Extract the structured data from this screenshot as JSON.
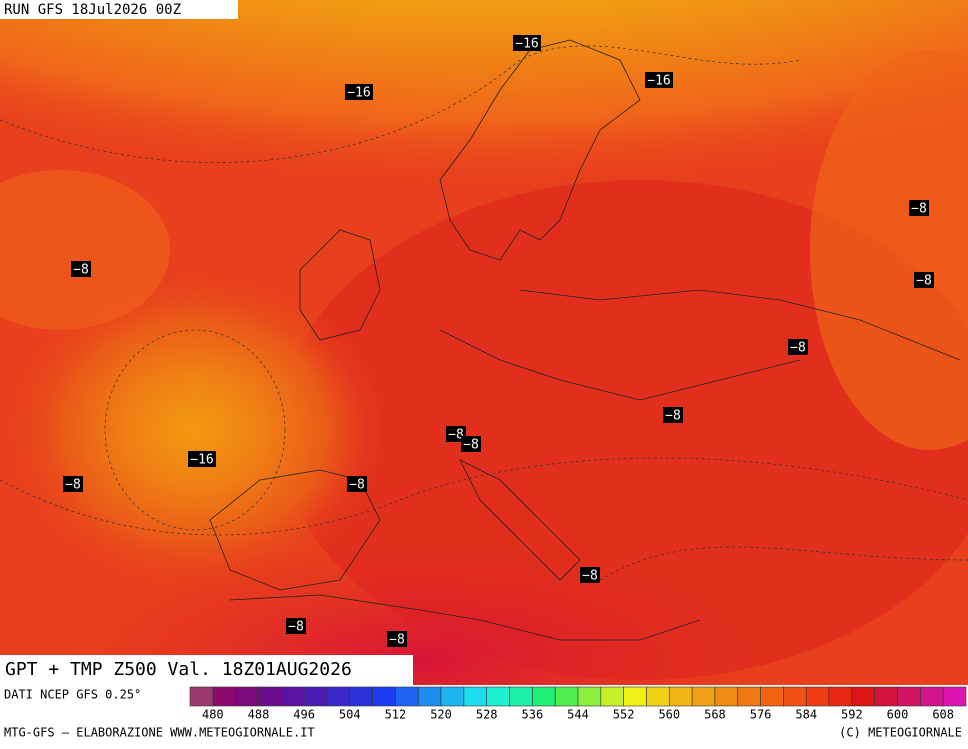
{
  "header": {
    "run": "RUN GFS 18Jul2026 00Z"
  },
  "title": "GPT + TMP Z500 Val. 18Z01AUG2026",
  "source": "DATI NCEP GFS 0.25°",
  "footer": {
    "left": "MTG-GFS — ELABORAZIONE WWW.METEOGIORNALE.IT",
    "right": "(C) METEOGIORNALE"
  },
  "contour_labels": [
    "−16",
    "−16",
    "−16",
    "−16",
    "−8",
    "−8",
    "−8",
    "−8",
    "−8",
    "−8",
    "−8",
    "−8",
    "−8",
    "−8",
    "−8",
    "−8"
  ],
  "colorbar": {
    "ticks": [
      480,
      488,
      496,
      504,
      512,
      520,
      528,
      536,
      544,
      552,
      560,
      568,
      576,
      584,
      592,
      600,
      608
    ],
    "colors": [
      "#9c3a6e",
      "#8c0a70",
      "#7c0a7c",
      "#6c0c8c",
      "#5c12a0",
      "#4a1cb4",
      "#3a28c8",
      "#2a32dc",
      "#1e3cf0",
      "#1e64f0",
      "#1e8cf0",
      "#1eb4f0",
      "#1edcf0",
      "#1ef0d2",
      "#1ef0aa",
      "#1ef078",
      "#50f050",
      "#8cf03c",
      "#c8f028",
      "#f0f014",
      "#f0d214",
      "#f0b414",
      "#f0a014",
      "#f08c14",
      "#f07814",
      "#f06414",
      "#f05014",
      "#f03c14",
      "#e62814",
      "#dc1414",
      "#d2143c",
      "#d21464",
      "#d2148c",
      "#dc14b4"
    ]
  }
}
